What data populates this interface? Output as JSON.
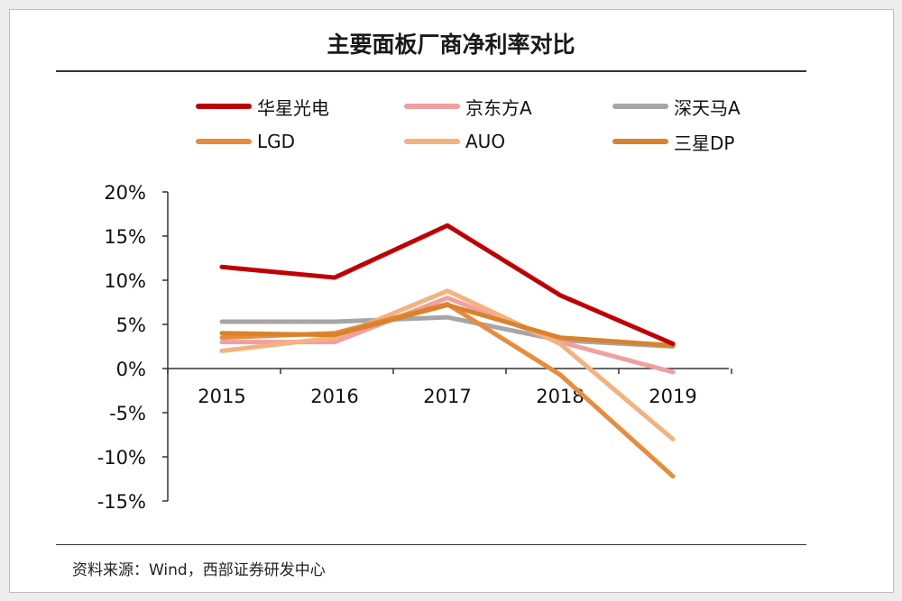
{
  "title": "主要面板厂商净利率对比",
  "source": "资料来源：Wind，西部证券研发中心",
  "chart_data": {
    "type": "line",
    "x": [
      "2015",
      "2016",
      "2017",
      "2018",
      "2019"
    ],
    "ylim": [
      -15,
      20
    ],
    "yticks": [
      20,
      15,
      10,
      5,
      0,
      -5,
      -10,
      -15
    ],
    "ytick_labels": [
      "20%",
      "15%",
      "10%",
      "5%",
      "0%",
      "-5%",
      "-10%",
      "-15%"
    ],
    "legend_position": "top",
    "series": [
      {
        "name": "华星光电",
        "color": "#c00000",
        "values": [
          11.5,
          10.3,
          16.2,
          8.3,
          2.8
        ]
      },
      {
        "name": "京东方A",
        "color": "#f0a0a0",
        "values": [
          3.0,
          3.0,
          8.0,
          3.0,
          -0.4
        ]
      },
      {
        "name": "深天马A",
        "color": "#a6a6a6",
        "values": [
          5.3,
          5.3,
          5.8,
          3.2,
          2.5
        ]
      },
      {
        "name": "LGD",
        "color": "#e88c3c",
        "values": [
          3.5,
          4.0,
          7.3,
          -0.7,
          -12.2
        ]
      },
      {
        "name": "AUO",
        "color": "#f3b27e",
        "values": [
          2.0,
          3.5,
          8.8,
          2.8,
          -8.0
        ]
      },
      {
        "name": "三星DP",
        "color": "#d9822b",
        "values": [
          4.0,
          3.8,
          7.2,
          3.5,
          2.6
        ]
      }
    ]
  }
}
